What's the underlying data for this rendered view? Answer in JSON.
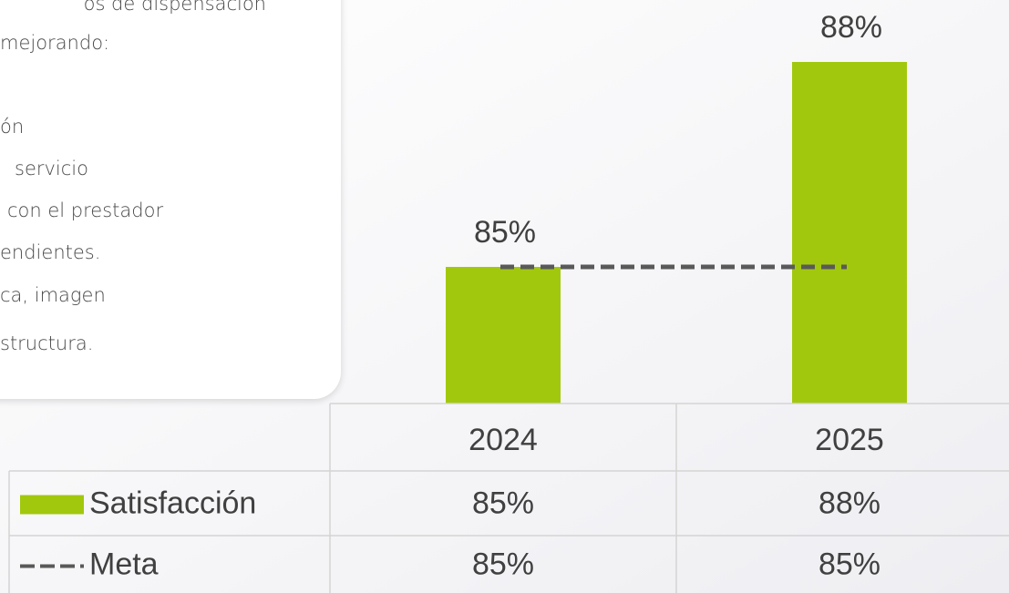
{
  "side_note": {
    "lines": [
      "os de dispensación",
      "mejorando:",
      "ón",
      "servicio",
      "con el prestador",
      "endientes.",
      "ca, imagen",
      "structura."
    ]
  },
  "chart_data": {
    "type": "bar",
    "categories": [
      "2024",
      "2025"
    ],
    "series": [
      {
        "name": "Satisfacción",
        "color": "#a2c80e",
        "values": [
          85,
          88
        ],
        "value_labels": [
          "85%",
          "88%"
        ]
      },
      {
        "name": "Meta",
        "type": "line",
        "dashed": true,
        "color": "#595959",
        "values": [
          85,
          85
        ],
        "value_labels": [
          "85%",
          "85%"
        ]
      }
    ],
    "ylim": [
      83,
      89
    ],
    "data_table": true
  }
}
